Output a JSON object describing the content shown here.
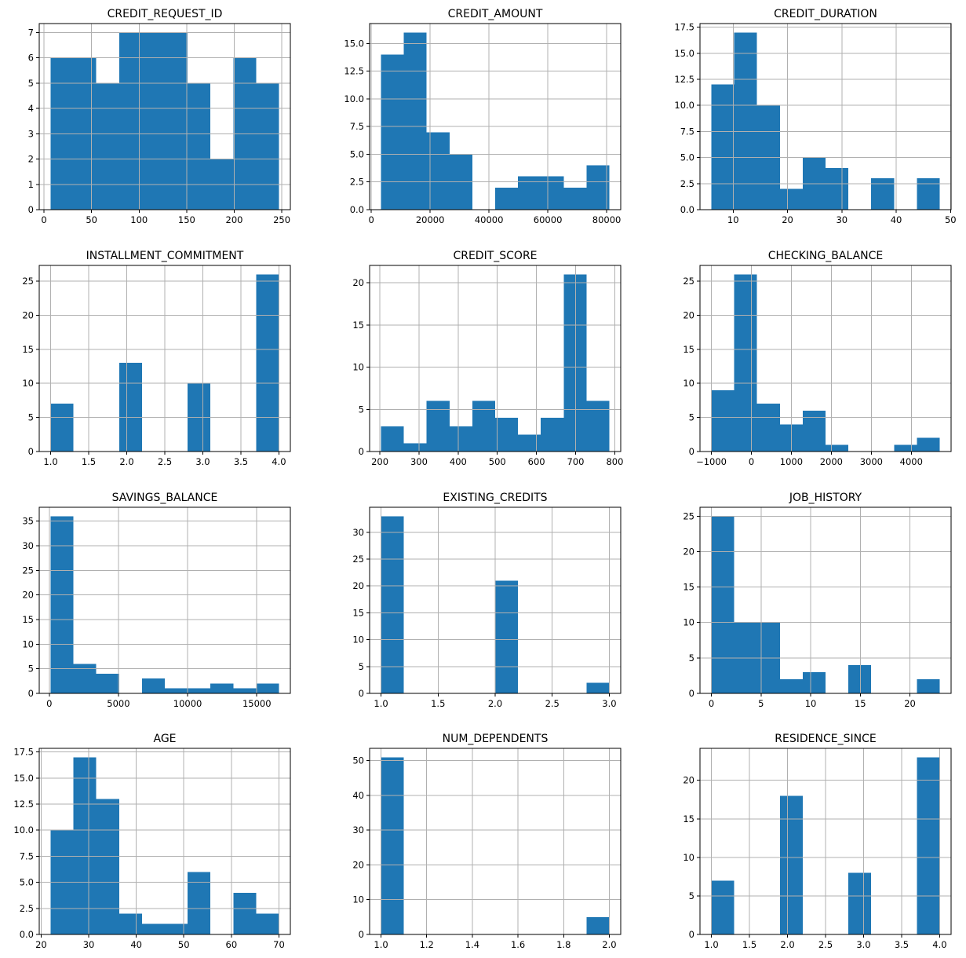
{
  "figure": {
    "kind": "pandas-hist-grid",
    "rows": 4,
    "cols": 3,
    "colors": {
      "bar": "#1f77b4",
      "grid": "#b0b0b0",
      "spine": "#000000",
      "text": "#000000",
      "background": "#ffffff"
    }
  },
  "chart_data": [
    {
      "type": "bar",
      "title": "CREDIT_REQUEST_ID",
      "xlabel": "",
      "ylabel": "",
      "grid": true,
      "bins": 10,
      "bin_start": 7,
      "bin_width": 24,
      "values": [
        6,
        6,
        5,
        7,
        7,
        7,
        5,
        2,
        6,
        5
      ],
      "xticks": [
        0,
        50,
        100,
        150,
        200,
        250
      ],
      "xtick_labels": [
        "0",
        "50",
        "100",
        "150",
        "200",
        "250"
      ],
      "yticks": [
        0,
        1,
        2,
        3,
        4,
        5,
        6,
        7
      ],
      "ytick_labels": [
        "0",
        "1",
        "2",
        "3",
        "4",
        "5",
        "6",
        "7"
      ],
      "xlim": [
        -5,
        259
      ],
      "ylim": [
        0,
        7.35
      ]
    },
    {
      "type": "bar",
      "title": "CREDIT_AMOUNT",
      "xlabel": "",
      "ylabel": "",
      "grid": true,
      "bins": 10,
      "bin_start": 3300,
      "bin_width": 7760,
      "values": [
        14,
        16,
        7,
        5,
        0,
        2,
        3,
        3,
        2,
        4
      ],
      "xticks": [
        0,
        20000,
        40000,
        60000,
        80000
      ],
      "xtick_labels": [
        "0",
        "20000",
        "40000",
        "60000",
        "80000"
      ],
      "yticks": [
        0,
        2.5,
        5,
        7.5,
        10,
        12.5,
        15
      ],
      "ytick_labels": [
        "0.0",
        "2.5",
        "5.0",
        "7.5",
        "10.0",
        "12.5",
        "15.0"
      ],
      "xlim": [
        -580,
        84780
      ],
      "ylim": [
        0,
        16.8
      ]
    },
    {
      "type": "bar",
      "title": "CREDIT_DURATION",
      "xlabel": "",
      "ylabel": "",
      "grid": true,
      "bins": 10,
      "bin_start": 6,
      "bin_width": 4.2,
      "values": [
        12,
        17,
        10,
        2,
        5,
        4,
        0,
        3,
        0,
        3
      ],
      "xticks": [
        10,
        20,
        30,
        40,
        50
      ],
      "xtick_labels": [
        "10",
        "20",
        "30",
        "40",
        "50"
      ],
      "yticks": [
        0,
        2.5,
        5,
        7.5,
        10,
        12.5,
        15,
        17.5
      ],
      "ytick_labels": [
        "0.0",
        "2.5",
        "5.0",
        "7.5",
        "10.0",
        "12.5",
        "15.0",
        "17.5"
      ],
      "xlim": [
        3.9,
        50.1
      ],
      "ylim": [
        0,
        17.85
      ]
    },
    {
      "type": "bar",
      "title": "INSTALLMENT_COMMITMENT",
      "xlabel": "",
      "ylabel": "",
      "grid": true,
      "bins": 10,
      "bin_start": 1,
      "bin_width": 0.3,
      "values": [
        7,
        0,
        0,
        13,
        0,
        0,
        10,
        0,
        0,
        26
      ],
      "xticks": [
        1,
        1.5,
        2,
        2.5,
        3,
        3.5,
        4
      ],
      "xtick_labels": [
        "1.0",
        "1.5",
        "2.0",
        "2.5",
        "3.0",
        "3.5",
        "4.0"
      ],
      "yticks": [
        0,
        5,
        10,
        15,
        20,
        25
      ],
      "ytick_labels": [
        "0",
        "5",
        "10",
        "15",
        "20",
        "25"
      ],
      "xlim": [
        0.85,
        4.15
      ],
      "ylim": [
        0,
        27.3
      ]
    },
    {
      "type": "bar",
      "title": "CREDIT_SCORE",
      "xlabel": "",
      "ylabel": "",
      "grid": true,
      "bins": 10,
      "bin_start": 203,
      "bin_width": 58.3,
      "values": [
        3,
        1,
        6,
        3,
        6,
        4,
        2,
        4,
        21,
        6
      ],
      "xticks": [
        200,
        300,
        400,
        500,
        600,
        700,
        800
      ],
      "xtick_labels": [
        "200",
        "300",
        "400",
        "500",
        "600",
        "700",
        "800"
      ],
      "yticks": [
        0,
        5,
        10,
        15,
        20
      ],
      "ytick_labels": [
        "0",
        "5",
        "10",
        "15",
        "20"
      ],
      "xlim": [
        173.8,
        815.2
      ],
      "ylim": [
        0,
        22.05
      ]
    },
    {
      "type": "bar",
      "title": "CHECKING_BALANCE",
      "xlabel": "",
      "ylabel": "",
      "grid": true,
      "bins": 10,
      "bin_start": -1000,
      "bin_width": 571,
      "values": [
        9,
        26,
        7,
        4,
        6,
        1,
        0,
        0,
        1,
        2
      ],
      "xticks": [
        -1000,
        0,
        1000,
        2000,
        3000,
        4000
      ],
      "xtick_labels": [
        "−1000",
        "0",
        "1000",
        "2000",
        "3000",
        "4000"
      ],
      "yticks": [
        0,
        5,
        10,
        15,
        20,
        25
      ],
      "ytick_labels": [
        "0",
        "5",
        "10",
        "15",
        "20",
        "25"
      ],
      "xlim": [
        -1285.5,
        4995.5
      ],
      "ylim": [
        0,
        27.3
      ]
    },
    {
      "type": "bar",
      "title": "SAVINGS_BALANCE",
      "xlabel": "",
      "ylabel": "",
      "grid": true,
      "bins": 10,
      "bin_start": 100,
      "bin_width": 1650,
      "values": [
        36,
        6,
        4,
        0,
        3,
        1,
        1,
        2,
        1,
        2
      ],
      "xticks": [
        0,
        5000,
        10000,
        15000
      ],
      "xtick_labels": [
        "0",
        "5000",
        "10000",
        "15000"
      ],
      "yticks": [
        0,
        5,
        10,
        15,
        20,
        25,
        30,
        35
      ],
      "ytick_labels": [
        "0",
        "5",
        "10",
        "15",
        "20",
        "25",
        "30",
        "35"
      ],
      "xlim": [
        -725,
        17425
      ],
      "ylim": [
        0,
        37.8
      ]
    },
    {
      "type": "bar",
      "title": "EXISTING_CREDITS",
      "xlabel": "",
      "ylabel": "",
      "grid": true,
      "bins": 10,
      "bin_start": 1,
      "bin_width": 0.2,
      "values": [
        33,
        0,
        0,
        0,
        0,
        21,
        0,
        0,
        0,
        2
      ],
      "xticks": [
        1,
        1.5,
        2,
        2.5,
        3
      ],
      "xtick_labels": [
        "1.0",
        "1.5",
        "2.0",
        "2.5",
        "3.0"
      ],
      "yticks": [
        0,
        5,
        10,
        15,
        20,
        25,
        30
      ],
      "ytick_labels": [
        "0",
        "5",
        "10",
        "15",
        "20",
        "25",
        "30"
      ],
      "xlim": [
        0.9,
        3.1
      ],
      "ylim": [
        0,
        34.65
      ]
    },
    {
      "type": "bar",
      "title": "JOB_HISTORY",
      "xlabel": "",
      "ylabel": "",
      "grid": true,
      "bins": 10,
      "bin_start": 0,
      "bin_width": 2.3,
      "values": [
        25,
        10,
        10,
        2,
        3,
        0,
        4,
        0,
        0,
        2
      ],
      "xticks": [
        0,
        5,
        10,
        15,
        20
      ],
      "xtick_labels": [
        "0",
        "5",
        "10",
        "15",
        "20"
      ],
      "yticks": [
        0,
        5,
        10,
        15,
        20,
        25
      ],
      "ytick_labels": [
        "0",
        "5",
        "10",
        "15",
        "20",
        "25"
      ],
      "xlim": [
        -1.15,
        24.15
      ],
      "ylim": [
        0,
        26.25
      ]
    },
    {
      "type": "bar",
      "title": "AGE",
      "xlabel": "",
      "ylabel": "",
      "grid": true,
      "bins": 10,
      "bin_start": 22,
      "bin_width": 4.8,
      "values": [
        10,
        17,
        13,
        2,
        1,
        1,
        6,
        0,
        4,
        2
      ],
      "xticks": [
        20,
        30,
        40,
        50,
        60,
        70
      ],
      "xtick_labels": [
        "20",
        "30",
        "40",
        "50",
        "60",
        "70"
      ],
      "yticks": [
        0,
        2.5,
        5,
        7.5,
        10,
        12.5,
        15,
        17.5
      ],
      "ytick_labels": [
        "0.0",
        "2.5",
        "5.0",
        "7.5",
        "10.0",
        "12.5",
        "15.0",
        "17.5"
      ],
      "xlim": [
        19.6,
        72.4
      ],
      "ylim": [
        0,
        17.85
      ]
    },
    {
      "type": "bar",
      "title": "NUM_DEPENDENTS",
      "xlabel": "",
      "ylabel": "",
      "grid": true,
      "bins": 10,
      "bin_start": 1,
      "bin_width": 0.1,
      "values": [
        51,
        0,
        0,
        0,
        0,
        0,
        0,
        0,
        0,
        5
      ],
      "xticks": [
        1,
        1.2,
        1.4,
        1.6,
        1.8,
        2
      ],
      "xtick_labels": [
        "1.0",
        "1.2",
        "1.4",
        "1.6",
        "1.8",
        "2.0"
      ],
      "yticks": [
        0,
        10,
        20,
        30,
        40,
        50
      ],
      "ytick_labels": [
        "0",
        "10",
        "20",
        "30",
        "40",
        "50"
      ],
      "xlim": [
        0.95,
        2.05
      ],
      "ylim": [
        0,
        53.55
      ]
    },
    {
      "type": "bar",
      "title": "RESIDENCE_SINCE",
      "xlabel": "",
      "ylabel": "",
      "grid": true,
      "bins": 10,
      "bin_start": 1,
      "bin_width": 0.3,
      "values": [
        7,
        0,
        0,
        18,
        0,
        0,
        8,
        0,
        0,
        23
      ],
      "xticks": [
        1,
        1.5,
        2,
        2.5,
        3,
        3.5,
        4
      ],
      "xtick_labels": [
        "1.0",
        "1.5",
        "2.0",
        "2.5",
        "3.0",
        "3.5",
        "4.0"
      ],
      "yticks": [
        0,
        5,
        10,
        15,
        20
      ],
      "ytick_labels": [
        "0",
        "5",
        "10",
        "15",
        "20"
      ],
      "xlim": [
        0.85,
        4.15
      ],
      "ylim": [
        0,
        24.15
      ]
    }
  ]
}
